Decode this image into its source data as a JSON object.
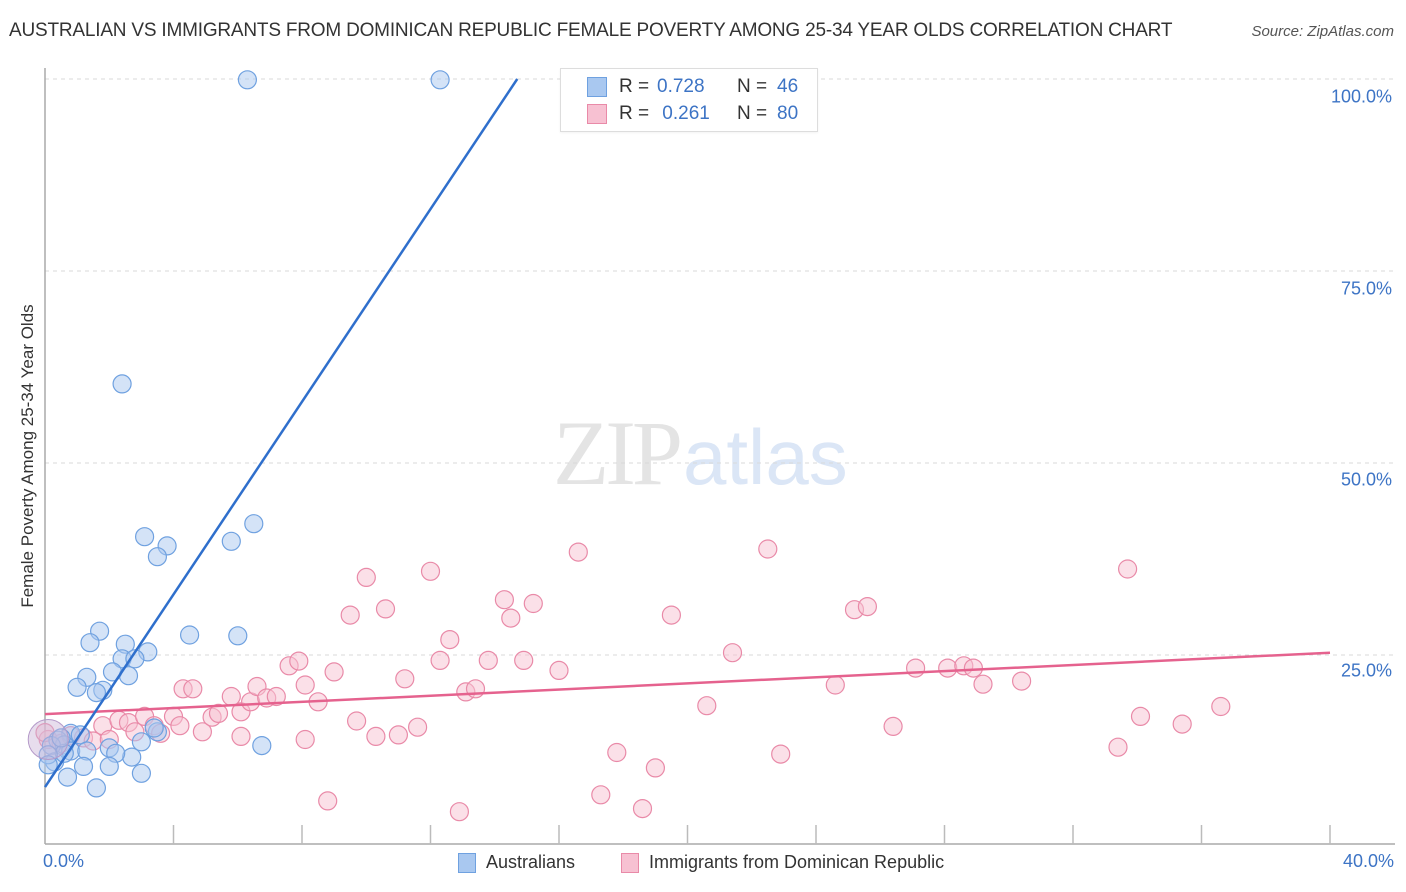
{
  "header": {
    "title": "AUSTRALIAN VS IMMIGRANTS FROM DOMINICAN REPUBLIC FEMALE POVERTY AMONG 25-34 YEAR OLDS CORRELATION CHART",
    "source": "Source: ZipAtlas.com"
  },
  "watermark": {
    "zip": "ZIP",
    "atlas": "atlas"
  },
  "legend": {
    "rows": [
      {
        "series": "Australians",
        "r_label": "R =",
        "r_value": "0.728",
        "n_label": "N =",
        "n_value": "46",
        "color": "#a9c8f0",
        "border": "#6fa1e0"
      },
      {
        "series": "Immigrants from Dominican Republic",
        "r_label": "R =",
        "r_value": " 0.261",
        "n_label": "N =",
        "n_value": "80",
        "color": "#f7c1d2",
        "border": "#e98aa8"
      }
    ]
  },
  "bottom_legend": [
    {
      "label": "Australians",
      "color": "#a9c8f0",
      "border": "#6fa1e0"
    },
    {
      "label": "Immigrants from Dominican Republic",
      "color": "#f7c1d2",
      "border": "#e98aa8"
    }
  ],
  "axes": {
    "y_label": "Female Poverty Among 25-34 Year Olds",
    "y_ticks": [
      "100.0%",
      "75.0%",
      "50.0%",
      "25.0%"
    ],
    "x_ticks": [
      "0.0%",
      "40.0%"
    ]
  },
  "colors": {
    "blue_line": "#2f6fcc",
    "pink_line": "#e5628e",
    "blue_fill": "#a9c8f0",
    "blue_stroke": "#6fa1e0",
    "pink_fill": "#f7c1d2",
    "pink_stroke": "#e98aa8",
    "tick_label": "#3d74c5"
  },
  "chart_data": {
    "type": "scatter",
    "title": "AUSTRALIAN VS IMMIGRANTS FROM DOMINICAN REPUBLIC FEMALE POVERTY AMONG 25-34 YEAR OLDS CORRELATION CHART",
    "xlabel": "",
    "ylabel": "Female Poverty Among 25-34 Year Olds",
    "xlim": [
      0,
      40
    ],
    "ylim": [
      0,
      100
    ],
    "x_tick_labels": [
      "0.0%",
      "40.0%"
    ],
    "y_tick_labels": [
      "25.0%",
      "50.0%",
      "75.0%",
      "100.0%"
    ],
    "grid": true,
    "legend_position": "top-center",
    "series": [
      {
        "name": "Australians",
        "r": 0.728,
        "n": 46,
        "trendline": {
          "x": [
            0,
            14.7
          ],
          "y": [
            7.8,
            100
          ]
        },
        "points": [
          [
            6.3,
            99.9
          ],
          [
            12.3,
            99.9
          ],
          [
            2.4,
            60.3
          ],
          [
            6.5,
            42.1
          ],
          [
            3.1,
            40.4
          ],
          [
            5.8,
            39.8
          ],
          [
            3.8,
            39.2
          ],
          [
            3.5,
            37.8
          ],
          [
            1.7,
            28.1
          ],
          [
            4.5,
            27.6
          ],
          [
            6.0,
            27.5
          ],
          [
            1.4,
            26.6
          ],
          [
            2.5,
            26.4
          ],
          [
            3.2,
            25.4
          ],
          [
            2.4,
            24.5
          ],
          [
            2.8,
            24.5
          ],
          [
            1.3,
            22.1
          ],
          [
            2.1,
            22.8
          ],
          [
            2.6,
            22.3
          ],
          [
            1.0,
            20.8
          ],
          [
            1.8,
            20.4
          ],
          [
            1.6,
            20.1
          ],
          [
            3.5,
            15.0
          ],
          [
            3.4,
            15.5
          ],
          [
            0.8,
            14.8
          ],
          [
            1.1,
            14.6
          ],
          [
            0.4,
            13.9
          ],
          [
            0.6,
            13.3
          ],
          [
            0.8,
            12.5
          ],
          [
            0.2,
            13.2
          ],
          [
            0.3,
            11.1
          ],
          [
            3.0,
            13.7
          ],
          [
            2.0,
            12.9
          ],
          [
            1.3,
            12.5
          ],
          [
            2.7,
            11.7
          ],
          [
            2.2,
            12.2
          ],
          [
            0.6,
            12.2
          ],
          [
            6.75,
            13.2
          ],
          [
            1.2,
            10.5
          ],
          [
            2.0,
            10.5
          ],
          [
            3.0,
            9.6
          ],
          [
            0.7,
            9.1
          ],
          [
            1.6,
            7.7
          ],
          [
            0.1,
            12.0
          ],
          [
            0.1,
            10.7
          ],
          [
            0.5,
            14.2
          ]
        ]
      },
      {
        "name": "Immigrants from Dominican Republic",
        "r": 0.261,
        "n": 80,
        "trendline": {
          "x": [
            0,
            40
          ],
          "y": [
            17.3,
            25.3
          ]
        },
        "points": [
          [
            0.1,
            14.0
          ],
          [
            0.5,
            13.5
          ],
          [
            0.8,
            14.5
          ],
          [
            1.2,
            14.2
          ],
          [
            1.5,
            13.8
          ],
          [
            1.8,
            15.8
          ],
          [
            2.0,
            14.0
          ],
          [
            2.3,
            16.5
          ],
          [
            2.6,
            16.2
          ],
          [
            2.8,
            15.0
          ],
          [
            3.1,
            17.0
          ],
          [
            3.4,
            15.8
          ],
          [
            3.6,
            14.8
          ],
          [
            4.0,
            17.0
          ],
          [
            4.2,
            15.8
          ],
          [
            4.3,
            20.6
          ],
          [
            4.6,
            20.6
          ],
          [
            4.9,
            15.0
          ],
          [
            5.2,
            16.9
          ],
          [
            5.4,
            17.4
          ],
          [
            5.8,
            19.6
          ],
          [
            6.1,
            14.4
          ],
          [
            6.1,
            17.6
          ],
          [
            6.4,
            18.9
          ],
          [
            6.6,
            20.9
          ],
          [
            6.9,
            19.4
          ],
          [
            7.2,
            19.6
          ],
          [
            7.6,
            23.6
          ],
          [
            7.9,
            24.2
          ],
          [
            8.1,
            21.1
          ],
          [
            8.1,
            14.0
          ],
          [
            8.5,
            18.9
          ],
          [
            8.8,
            6.0
          ],
          [
            9.0,
            22.8
          ],
          [
            9.5,
            30.2
          ],
          [
            9.7,
            16.4
          ],
          [
            10.0,
            35.1
          ],
          [
            10.3,
            14.4
          ],
          [
            10.6,
            31.0
          ],
          [
            11.0,
            14.6
          ],
          [
            11.2,
            21.9
          ],
          [
            11.6,
            15.6
          ],
          [
            12.0,
            35.9
          ],
          [
            12.3,
            24.3
          ],
          [
            12.6,
            27.0
          ],
          [
            12.9,
            4.6
          ],
          [
            13.1,
            20.2
          ],
          [
            13.4,
            20.6
          ],
          [
            13.8,
            24.3
          ],
          [
            14.3,
            32.2
          ],
          [
            14.5,
            29.8
          ],
          [
            14.9,
            24.3
          ],
          [
            15.2,
            31.7
          ],
          [
            16.0,
            23.0
          ],
          [
            16.6,
            38.4
          ],
          [
            17.3,
            6.8
          ],
          [
            17.8,
            12.3
          ],
          [
            18.6,
            5.0
          ],
          [
            19.0,
            10.3
          ],
          [
            19.5,
            30.2
          ],
          [
            20.6,
            18.4
          ],
          [
            21.4,
            25.3
          ],
          [
            22.5,
            38.8
          ],
          [
            22.9,
            12.1
          ],
          [
            24.6,
            21.1
          ],
          [
            25.2,
            30.9
          ],
          [
            25.6,
            31.3
          ],
          [
            26.4,
            15.7
          ],
          [
            27.1,
            23.3
          ],
          [
            28.1,
            23.3
          ],
          [
            28.6,
            23.6
          ],
          [
            28.9,
            23.3
          ],
          [
            29.2,
            21.2
          ],
          [
            30.4,
            21.6
          ],
          [
            33.4,
            13.0
          ],
          [
            33.7,
            36.2
          ],
          [
            34.1,
            17.0
          ],
          [
            35.4,
            16.0
          ],
          [
            36.6,
            18.3
          ],
          [
            0.0,
            14.9
          ]
        ]
      }
    ]
  }
}
